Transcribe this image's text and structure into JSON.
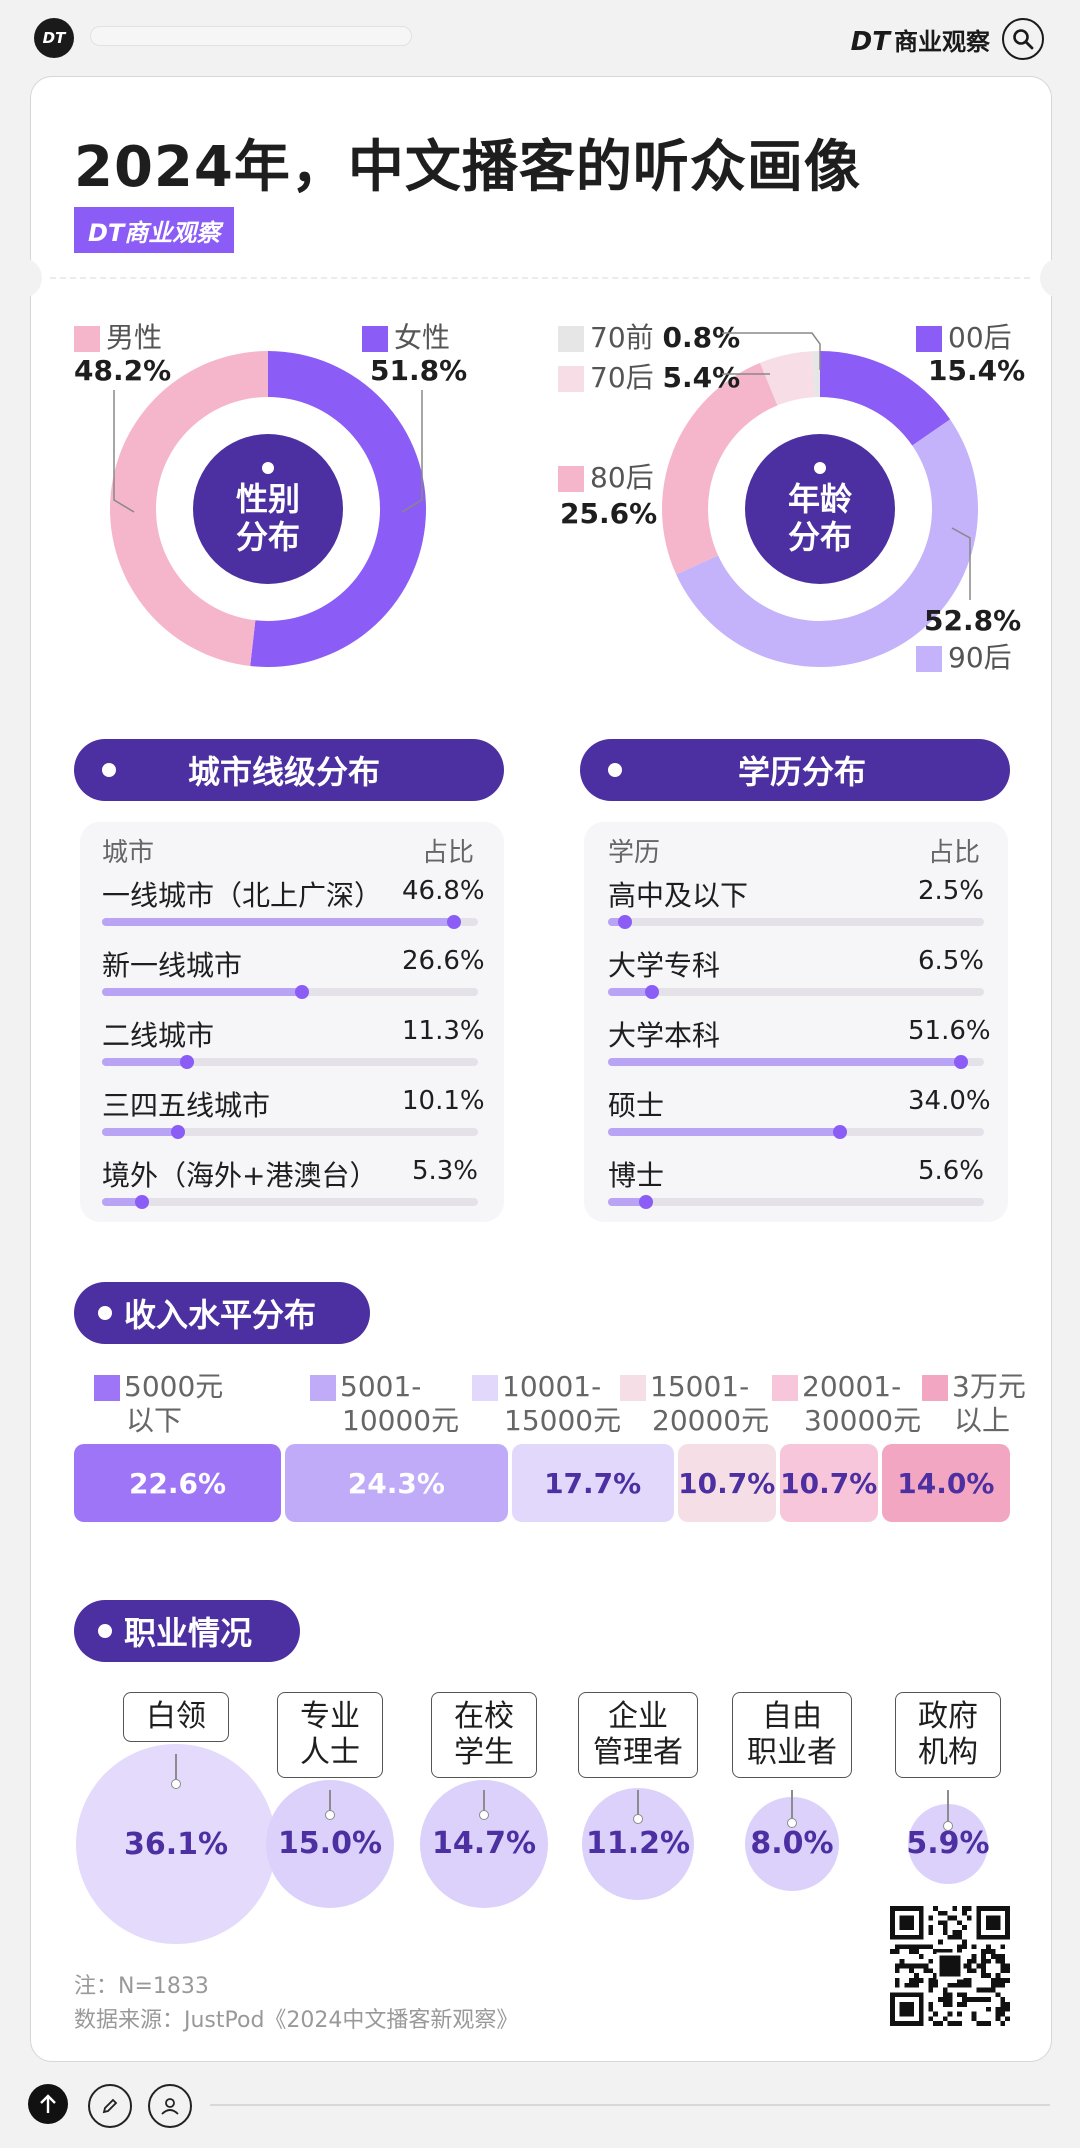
{
  "header": {
    "logo": "DT",
    "brand_dt": "DT",
    "brand_name": "商业观察",
    "search_icon": "search-icon"
  },
  "title": "2024年，中文播客的听众画像",
  "badge": "DT商业观察",
  "chart_data": [
    {
      "type": "pie",
      "center_label": [
        "性别",
        "分布"
      ],
      "labels": [
        "男性",
        "女性"
      ],
      "values": [
        48.2,
        51.8
      ],
      "value_labels": [
        "48.2%",
        "51.8%"
      ],
      "colors": [
        "#f5b6cc",
        "#8b5cf6"
      ]
    },
    {
      "type": "pie",
      "center_label": [
        "年龄",
        "分布"
      ],
      "labels": [
        "00后",
        "90后",
        "80后",
        "70后",
        "70前"
      ],
      "values": [
        15.4,
        52.8,
        25.6,
        5.4,
        0.8
      ],
      "value_labels": [
        "15.4%",
        "52.8%",
        "25.6%",
        "5.4%",
        "0.8%"
      ],
      "colors": [
        "#8b5cf6",
        "#c4b2fa",
        "#f5b6cc",
        "#f6dde6",
        "#e6e6e6"
      ]
    },
    {
      "type": "bar",
      "title": "城市线级分布",
      "col_headers": [
        "城市",
        "占比"
      ],
      "categories": [
        "一线城市（北上广深）",
        "新一线城市",
        "二线城市",
        "三四五线城市",
        "境外（海外+港澳台）"
      ],
      "values": [
        46.8,
        26.6,
        11.3,
        10.1,
        5.3
      ],
      "value_labels": [
        "46.8%",
        "26.6%",
        "11.3%",
        "10.1%",
        "5.3%"
      ],
      "xlim": [
        0,
        50
      ]
    },
    {
      "type": "bar",
      "title": "学历分布",
      "col_headers": [
        "学历",
        "占比"
      ],
      "categories": [
        "高中及以下",
        "大学专科",
        "大学本科",
        "硕士",
        "博士"
      ],
      "values": [
        2.5,
        6.5,
        51.6,
        34.0,
        5.6
      ],
      "value_labels": [
        "2.5%",
        "6.5%",
        "51.6%",
        "34.0%",
        "5.6%"
      ],
      "xlim": [
        0,
        55
      ]
    },
    {
      "type": "bar",
      "title": "收入水平分布",
      "categories": [
        [
          "5000元",
          "以下"
        ],
        [
          "5001-",
          "10000元"
        ],
        [
          "10001-",
          "15000元"
        ],
        [
          "15001-",
          "20000元"
        ],
        [
          "20001-",
          "30000元"
        ],
        [
          "3万元",
          "以上"
        ]
      ],
      "values": [
        22.6,
        24.3,
        17.7,
        10.7,
        10.7,
        14.0
      ],
      "value_labels": [
        "22.6%",
        "24.3%",
        "17.7%",
        "10.7%",
        "10.7%",
        "14.0%"
      ],
      "colors": [
        "#9f75f7",
        "#c0abf8",
        "#e1d8fb",
        "#f5dee5",
        "#f8c6db",
        "#f3a6c2"
      ]
    },
    {
      "type": "scatter",
      "title": "职业情况",
      "categories": [
        [
          "白领"
        ],
        [
          "专业",
          "人士"
        ],
        [
          "在校",
          "学生"
        ],
        [
          "企业",
          "管理者"
        ],
        [
          "自由",
          "职业者"
        ],
        [
          "政府",
          "机构"
        ]
      ],
      "values": [
        36.1,
        15.0,
        14.7,
        11.2,
        8.0,
        5.9
      ],
      "value_labels": [
        "36.1%",
        "15.0%",
        "14.7%",
        "11.2%",
        "8.0%",
        "5.9%"
      ]
    }
  ],
  "notes": {
    "n": "注：N=1833",
    "source": "数据来源：JustPod《2024中文播客新观察》"
  },
  "colors": {
    "accent": "#8b5cf6",
    "dark": "#4c2fa0",
    "pink": "#f5b6cc"
  }
}
